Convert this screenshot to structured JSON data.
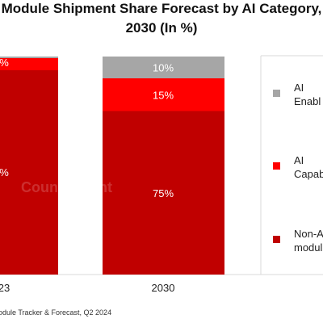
{
  "title_line1": "Module Shipment Share Forecast by AI Category,",
  "title_line2": "2030 (In %)",
  "source": "odule Tracker & Forecast, Q2 2024",
  "watermark": "Counterpoint",
  "chart_data": {
    "type": "bar",
    "stacked": true,
    "title": "Module Shipment Share Forecast by AI Category, 2030 (In %)",
    "categories": [
      "23",
      "2030"
    ],
    "ylim": [
      0,
      100
    ],
    "series": [
      {
        "name": "Non-A\nmodul",
        "color": "#c00000",
        "values": [
          null,
          75
        ],
        "labels": [
          "%",
          "75%"
        ]
      },
      {
        "name": "AI\nCapab",
        "color": "#ff0000",
        "values": [
          null,
          15
        ],
        "labels": [
          "%",
          "15%"
        ]
      },
      {
        "name": "AI\nEnabl",
        "color": "#a6a6a6",
        "values": [
          null,
          10
        ],
        "labels": [
          "",
          "10%"
        ]
      }
    ],
    "legend_position": "right"
  }
}
